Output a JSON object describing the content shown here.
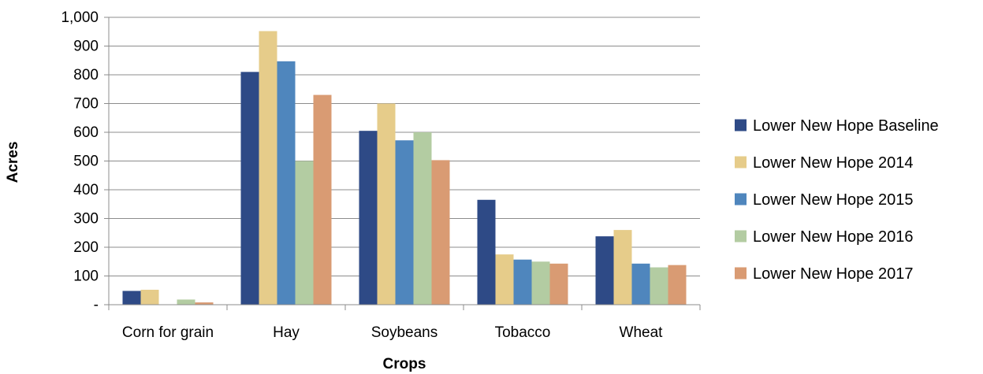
{
  "chart_data": {
    "type": "bar",
    "xlabel": "Crops",
    "ylabel": "Acres",
    "ylim": [
      0,
      1000
    ],
    "y_ticks": [
      {
        "value": 0,
        "label": "-"
      },
      {
        "value": 100,
        "label": "100"
      },
      {
        "value": 200,
        "label": "200"
      },
      {
        "value": 300,
        "label": "300"
      },
      {
        "value": 400,
        "label": "400"
      },
      {
        "value": 500,
        "label": "500"
      },
      {
        "value": 600,
        "label": "600"
      },
      {
        "value": 700,
        "label": "700"
      },
      {
        "value": 800,
        "label": "800"
      },
      {
        "value": 900,
        "label": "900"
      },
      {
        "value": 1000,
        "label": "1,000"
      }
    ],
    "categories": [
      "Corn for grain",
      "Hay",
      "Soybeans",
      "Tobacco",
      "Wheat"
    ],
    "series": [
      {
        "name": "Lower New Hope Baseline",
        "color": "#2E4A86",
        "values": [
          48,
          810,
          605,
          365,
          238
        ]
      },
      {
        "name": "Lower New Hope 2014",
        "color": "#E6CC8A",
        "values": [
          52,
          952,
          700,
          175,
          260
        ]
      },
      {
        "name": "Lower New Hope 2015",
        "color": "#4F86BD",
        "values": [
          0,
          847,
          572,
          157,
          143
        ]
      },
      {
        "name": "Lower New Hope 2016",
        "color": "#B3CCA2",
        "values": [
          18,
          500,
          600,
          150,
          130
        ]
      },
      {
        "name": "Lower New Hope 2017",
        "color": "#D99B73",
        "values": [
          8,
          730,
          503,
          143,
          138
        ]
      }
    ],
    "grid": true,
    "legend_position": "right"
  }
}
